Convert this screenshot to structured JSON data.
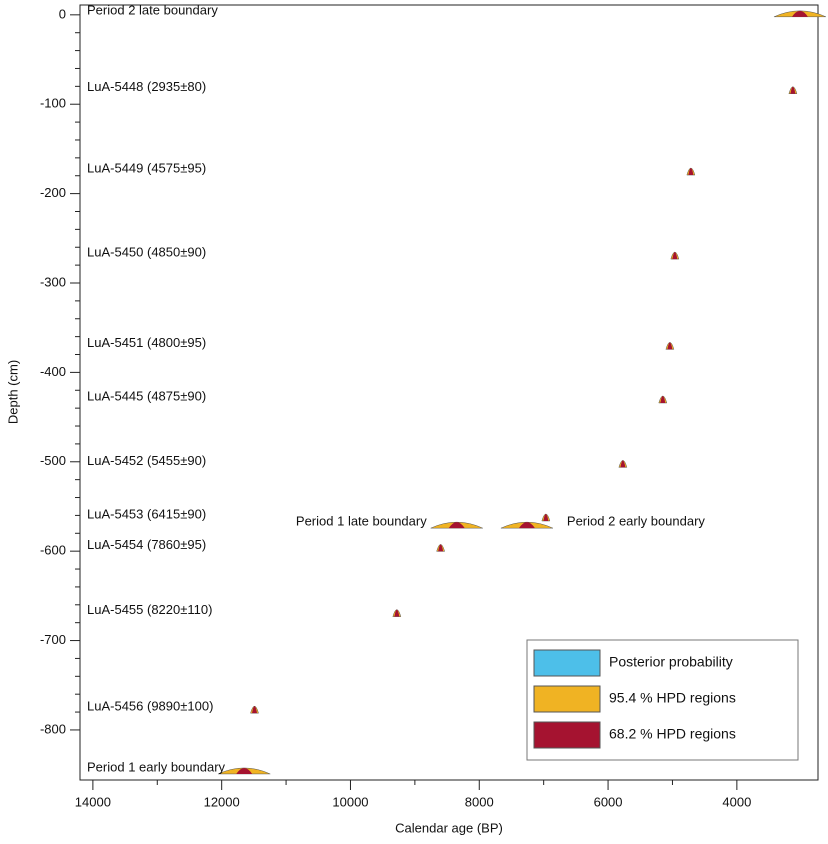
{
  "chart_data": {
    "type": "scatter",
    "x_label": "Calendar age (BP)",
    "y_label": "Depth (cm)",
    "labels": [
      "Period 2 late boundary",
      "LuA-5448 (2935±80)",
      "LuA-5449 (4575±95)",
      "LuA-5450 (4850±90)",
      "LuA-5451 (4800±95)",
      "LuA-5445 (4875±90)",
      "LuA-5452 (5455±90)",
      "LuA-5453 (6415±90)",
      "Period 2 early boundary",
      "Period 1 late boundary",
      "LuA-5454 (7860±95)",
      "LuA-5455 (8220±110)",
      "LuA-5456 (9890±100)",
      "Period 1 early boundary"
    ],
    "x": [
      3020,
      3130,
      4714,
      4963,
      5040,
      5150,
      5770,
      6966,
      7260,
      8350,
      8600,
      9280,
      11490,
      11650
    ],
    "values": [
      0,
      -86,
      -177,
      -271,
      -372,
      -432,
      -504,
      -564,
      -572,
      -572,
      -598,
      -671,
      -779,
      -847
    ],
    "xlim": [
      14200,
      2740
    ],
    "xticks": [
      14000,
      12000,
      10000,
      8000,
      6000,
      4000
    ],
    "ylim": [
      -856,
      11
    ],
    "yticks": [
      0,
      -100,
      -200,
      -300,
      -400,
      -500,
      -600,
      -700,
      -800
    ],
    "legend": {
      "corner": "lower right",
      "entries": [
        {
          "name": "Posterior probability",
          "color": "#4dbfe9"
        },
        {
          "name": "95.4 % HPD regions",
          "color": "#f0b323"
        },
        {
          "name": "68.2 % HPD regions",
          "color": "#a51330"
        }
      ]
    }
  }
}
